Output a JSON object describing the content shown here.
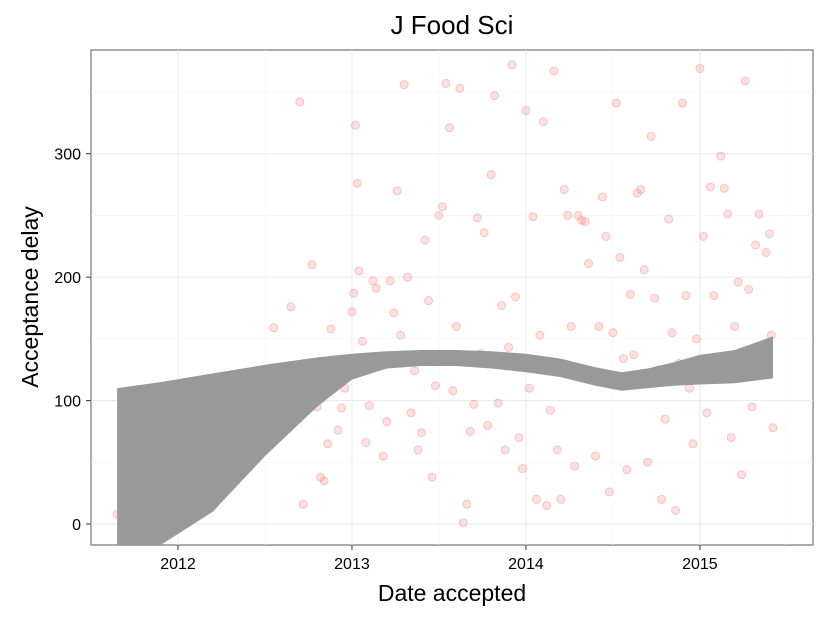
{
  "chart_data": {
    "type": "scatter",
    "title": "J Food Sci",
    "xlabel": "Date accepted",
    "ylabel": "Acceptance delay",
    "x_ticks": [
      "2012",
      "2013",
      "2014",
      "2015"
    ],
    "y_ticks": [
      "0",
      "100",
      "200",
      "300"
    ],
    "xlim": [
      2011.5,
      2015.65
    ],
    "ylim": [
      -17,
      384
    ],
    "grid": true,
    "point_color": "#f8766d",
    "ribbon_color": "#999999",
    "smooth_band": {
      "x": [
        2011.65,
        2011.9,
        2012.2,
        2012.5,
        2012.8,
        2013.0,
        2013.2,
        2013.4,
        2013.6,
        2013.8,
        2014.0,
        2014.2,
        2014.4,
        2014.55,
        2014.7,
        2014.85,
        2015.0,
        2015.2,
        2015.42
      ],
      "lower": [
        -150,
        -50,
        10,
        55,
        95,
        117,
        126,
        128,
        128,
        126,
        123,
        119,
        112,
        108,
        110,
        112,
        113,
        114,
        118
      ],
      "upper": [
        110,
        115,
        122,
        129,
        135,
        138,
        140,
        141,
        141,
        140,
        138,
        134,
        127,
        123,
        126,
        131,
        137,
        141,
        152
      ]
    },
    "points": [
      [
        2011.65,
        8
      ],
      [
        2011.83,
        1
      ],
      [
        2012.55,
        159
      ],
      [
        2012.65,
        176
      ],
      [
        2012.7,
        342
      ],
      [
        2012.72,
        16
      ],
      [
        2012.77,
        210
      ],
      [
        2012.8,
        95
      ],
      [
        2012.82,
        38
      ],
      [
        2012.84,
        35
      ],
      [
        2012.86,
        65
      ],
      [
        2012.88,
        158
      ],
      [
        2012.9,
        133
      ],
      [
        2012.92,
        76
      ],
      [
        2012.94,
        94
      ],
      [
        2012.96,
        110
      ],
      [
        2012.98,
        129
      ],
      [
        2013.0,
        172
      ],
      [
        2013.01,
        187
      ],
      [
        2013.02,
        323
      ],
      [
        2013.03,
        276
      ],
      [
        2013.04,
        205
      ],
      [
        2013.06,
        148
      ],
      [
        2013.08,
        66
      ],
      [
        2013.1,
        96
      ],
      [
        2013.12,
        197
      ],
      [
        2013.14,
        191
      ],
      [
        2013.16,
        130
      ],
      [
        2013.18,
        55
      ],
      [
        2013.2,
        83
      ],
      [
        2013.22,
        197
      ],
      [
        2013.24,
        171
      ],
      [
        2013.26,
        270
      ],
      [
        2013.28,
        153
      ],
      [
        2013.3,
        356
      ],
      [
        2013.32,
        200
      ],
      [
        2013.34,
        90
      ],
      [
        2013.36,
        124
      ],
      [
        2013.38,
        60
      ],
      [
        2013.4,
        74
      ],
      [
        2013.42,
        230
      ],
      [
        2013.44,
        181
      ],
      [
        2013.46,
        38
      ],
      [
        2013.48,
        112
      ],
      [
        2013.5,
        250
      ],
      [
        2013.52,
        257
      ],
      [
        2013.54,
        357
      ],
      [
        2013.56,
        321
      ],
      [
        2013.58,
        108
      ],
      [
        2013.6,
        160
      ],
      [
        2013.62,
        353
      ],
      [
        2013.64,
        1
      ],
      [
        2013.66,
        16
      ],
      [
        2013.68,
        75
      ],
      [
        2013.7,
        97
      ],
      [
        2013.72,
        248
      ],
      [
        2013.74,
        138
      ],
      [
        2013.76,
        236
      ],
      [
        2013.78,
        80
      ],
      [
        2013.8,
        283
      ],
      [
        2013.82,
        347
      ],
      [
        2013.84,
        98
      ],
      [
        2013.86,
        177
      ],
      [
        2013.88,
        60
      ],
      [
        2013.9,
        143
      ],
      [
        2013.92,
        372
      ],
      [
        2013.94,
        184
      ],
      [
        2013.96,
        70
      ],
      [
        2013.98,
        45
      ],
      [
        2014.0,
        335
      ],
      [
        2014.02,
        110
      ],
      [
        2014.04,
        249
      ],
      [
        2014.06,
        20
      ],
      [
        2014.08,
        153
      ],
      [
        2014.1,
        326
      ],
      [
        2014.12,
        15
      ],
      [
        2014.14,
        92
      ],
      [
        2014.16,
        367
      ],
      [
        2014.18,
        60
      ],
      [
        2014.2,
        20
      ],
      [
        2014.22,
        271
      ],
      [
        2014.24,
        250
      ],
      [
        2014.26,
        160
      ],
      [
        2014.28,
        47
      ],
      [
        2014.3,
        250
      ],
      [
        2014.32,
        246
      ],
      [
        2014.34,
        245
      ],
      [
        2014.36,
        211
      ],
      [
        2014.38,
        122
      ],
      [
        2014.4,
        55
      ],
      [
        2014.42,
        160
      ],
      [
        2014.44,
        265
      ],
      [
        2014.46,
        233
      ],
      [
        2014.48,
        26
      ],
      [
        2014.5,
        155
      ],
      [
        2014.52,
        341
      ],
      [
        2014.54,
        216
      ],
      [
        2014.56,
        134
      ],
      [
        2014.58,
        44
      ],
      [
        2014.6,
        186
      ],
      [
        2014.62,
        137
      ],
      [
        2014.64,
        268
      ],
      [
        2014.66,
        271
      ],
      [
        2014.68,
        206
      ],
      [
        2014.7,
        50
      ],
      [
        2014.72,
        314
      ],
      [
        2014.74,
        183
      ],
      [
        2014.76,
        125
      ],
      [
        2014.78,
        20
      ],
      [
        2014.8,
        85
      ],
      [
        2014.82,
        247
      ],
      [
        2014.84,
        155
      ],
      [
        2014.86,
        11
      ],
      [
        2014.88,
        130
      ],
      [
        2014.9,
        341
      ],
      [
        2014.92,
        185
      ],
      [
        2014.94,
        110
      ],
      [
        2014.96,
        65
      ],
      [
        2014.98,
        150
      ],
      [
        2015.0,
        369
      ],
      [
        2015.02,
        233
      ],
      [
        2015.04,
        90
      ],
      [
        2015.06,
        273
      ],
      [
        2015.08,
        185
      ],
      [
        2015.1,
        120
      ],
      [
        2015.12,
        298
      ],
      [
        2015.14,
        272
      ],
      [
        2015.16,
        251
      ],
      [
        2015.18,
        70
      ],
      [
        2015.2,
        160
      ],
      [
        2015.22,
        196
      ],
      [
        2015.24,
        40
      ],
      [
        2015.26,
        359
      ],
      [
        2015.28,
        190
      ],
      [
        2015.3,
        95
      ],
      [
        2015.32,
        226
      ],
      [
        2015.34,
        251
      ],
      [
        2015.36,
        130
      ],
      [
        2015.38,
        220
      ],
      [
        2015.4,
        235
      ],
      [
        2015.41,
        153
      ],
      [
        2015.42,
        78
      ]
    ]
  }
}
